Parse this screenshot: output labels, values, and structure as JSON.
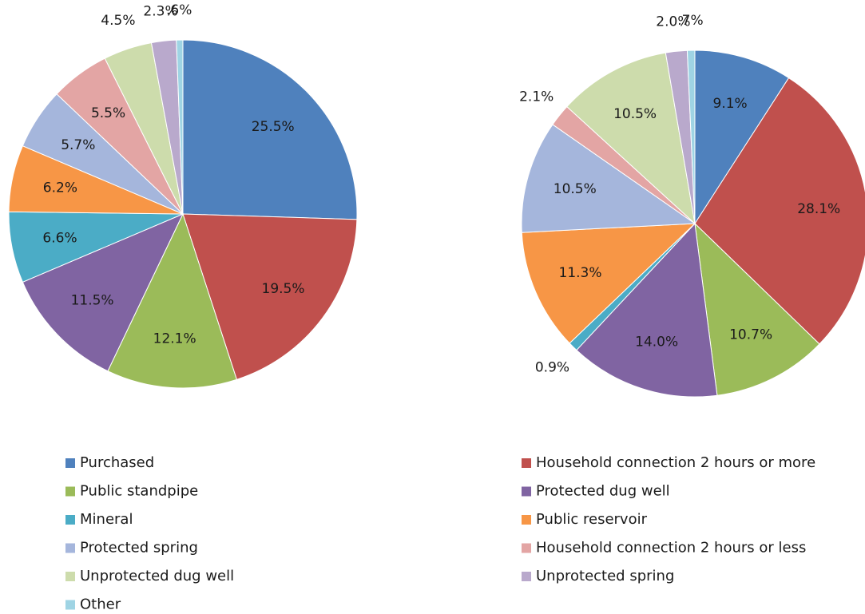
{
  "legend": {
    "categories": [
      "Purchased",
      "Household connection 2 hours or more",
      "Public standpipe",
      "Protected dug well",
      "Mineral",
      "Public reservoir",
      "Protected spring",
      "Household connection 2 hours or less",
      "Unprotected dug well",
      "Unprotected spring",
      "Other"
    ],
    "colors": [
      "#4f81bd",
      "#c0504d",
      "#9bbb59",
      "#8064a2",
      "#4bacc6",
      "#f79646",
      "#a5b6dc",
      "#e3a5a4",
      "#cddcac",
      "#b9a9cc",
      "#9fd4e4"
    ]
  },
  "chart_data": [
    {
      "type": "pie",
      "values": [
        25.5,
        19.5,
        12.1,
        11.5,
        6.6,
        6.2,
        5.7,
        5.5,
        4.5,
        2.3,
        0.6
      ],
      "value_labels": [
        "25.5%",
        "19.5%",
        "12.1%",
        "11.5%",
        "6.6%",
        "6.2%",
        "5.7%",
        "5.5%",
        "4.5%",
        "2.3%",
        ".6%"
      ]
    },
    {
      "type": "pie",
      "values": [
        9.1,
        28.1,
        10.7,
        14.0,
        0.9,
        11.3,
        10.5,
        2.1,
        10.5,
        2.0,
        0.7
      ],
      "value_labels": [
        "9.1%",
        "28.1%",
        "10.7%",
        "14.0%",
        "0.9%",
        "11.3%",
        "10.5%",
        "2.1%",
        "10.5%",
        "2.0%",
        ".7%"
      ]
    }
  ]
}
